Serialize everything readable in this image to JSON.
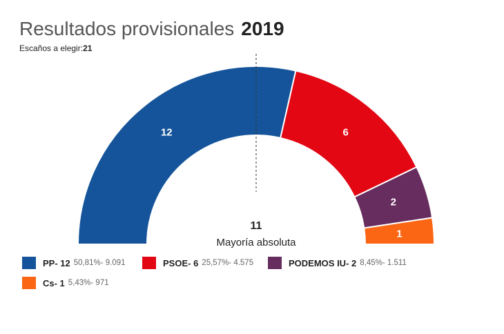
{
  "header": {
    "title": "Resultados provisionales",
    "year": "2019",
    "seats_label": "Escaños a elegir:",
    "seats_total": "21"
  },
  "chart_data": {
    "type": "parliament-hemicycle",
    "title": "Resultados provisionales 2019",
    "total_seats": 21,
    "majority": {
      "value": "11",
      "label": "Mayoría absoluta"
    },
    "series": [
      {
        "name": "PP",
        "seats": 12,
        "percent": "50,81%",
        "votes": "9.091",
        "color": "#15549a"
      },
      {
        "name": "PSOE",
        "seats": 6,
        "percent": "25,57%",
        "votes": "4.575",
        "color": "#e30613"
      },
      {
        "name": "PODEMOS IU",
        "seats": 2,
        "percent": "8,45%",
        "votes": "1.511",
        "color": "#662d5e"
      },
      {
        "name": "Cs",
        "seats": 1,
        "percent": "5,43%",
        "votes": "971",
        "color": "#fa6614"
      }
    ]
  },
  "legend": [
    {
      "label": "PP- 12",
      "stats": "50,81%- 9.091"
    },
    {
      "label": "PSOE- 6",
      "stats": "25,57%- 4.575"
    },
    {
      "label": "PODEMOS IU- 2",
      "stats": "8,45%- 1.511"
    },
    {
      "label": "Cs- 1",
      "stats": "5,43%- 971"
    }
  ]
}
